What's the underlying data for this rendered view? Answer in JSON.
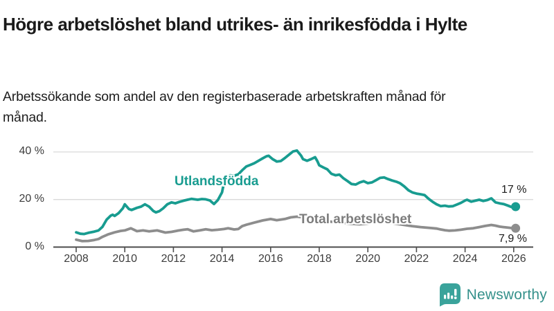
{
  "page": {
    "title": "Högre arbetslöshet bland utrikes- än inrikesfödda i Hylte",
    "subtitle": "Arbetssökande som andel av den registerbaserade arbetskraften månad för månad."
  },
  "branding": {
    "logo_text": "Newsworthy",
    "logo_icon": "bar-chart-speech-bubble-icon",
    "icon_color": "#3aa39b",
    "text_color": "#35918b"
  },
  "chart_data": {
    "type": "line",
    "title": "Högre arbetslöshet bland utrikes- än inrikesfödda i Hylte",
    "xlabel": "",
    "ylabel": "Arbetssökande som andel av den registerbaserade arbetskraften",
    "unit": "%",
    "ylim": [
      0,
      44
    ],
    "x_range": [
      2008.0,
      2026.1
    ],
    "grid": "horizontal-only",
    "legend_position": "inline-labels",
    "colors": {
      "grid": "#d9d9d9",
      "axis": "#4d4d4d",
      "tick_text": "#3c3c3c"
    },
    "y_ticks": [
      {
        "value": 0,
        "label": "0 %"
      },
      {
        "value": 20,
        "label": "20 %"
      },
      {
        "value": 40,
        "label": "40 %"
      }
    ],
    "x_ticks": [
      {
        "value": 2008,
        "label": "2008"
      },
      {
        "value": 2010,
        "label": "2010"
      },
      {
        "value": 2012,
        "label": "2012"
      },
      {
        "value": 2014,
        "label": "2014"
      },
      {
        "value": 2016,
        "label": "2016"
      },
      {
        "value": 2018,
        "label": "2018"
      },
      {
        "value": 2020,
        "label": "2020"
      },
      {
        "value": 2022,
        "label": "2022"
      },
      {
        "value": 2024,
        "label": "2024"
      },
      {
        "value": 2026,
        "label": "2026"
      }
    ],
    "series": [
      {
        "name": "Utlandsfödda",
        "color": "#189c90",
        "end_label": "17 %",
        "end_value": 17.0,
        "data": [
          [
            2008.0,
            6.2
          ],
          [
            2008.17,
            5.6
          ],
          [
            2008.33,
            5.5
          ],
          [
            2008.5,
            6.0
          ],
          [
            2008.75,
            6.5
          ],
          [
            2008.92,
            7.0
          ],
          [
            2009.08,
            8.5
          ],
          [
            2009.25,
            11.5
          ],
          [
            2009.42,
            13.2
          ],
          [
            2009.5,
            13.6
          ],
          [
            2009.58,
            13.1
          ],
          [
            2009.75,
            14.3
          ],
          [
            2009.92,
            16.3
          ],
          [
            2010.0,
            18.0
          ],
          [
            2010.17,
            16.0
          ],
          [
            2010.28,
            15.6
          ],
          [
            2010.5,
            16.5
          ],
          [
            2010.67,
            17.0
          ],
          [
            2010.83,
            18.0
          ],
          [
            2011.0,
            17.0
          ],
          [
            2011.17,
            15.2
          ],
          [
            2011.28,
            14.6
          ],
          [
            2011.42,
            15.1
          ],
          [
            2011.58,
            16.3
          ],
          [
            2011.75,
            18.0
          ],
          [
            2011.92,
            18.8
          ],
          [
            2012.08,
            18.4
          ],
          [
            2012.25,
            19.0
          ],
          [
            2012.42,
            19.5
          ],
          [
            2012.58,
            19.9
          ],
          [
            2012.75,
            20.3
          ],
          [
            2013.0,
            19.9
          ],
          [
            2013.17,
            20.2
          ],
          [
            2013.33,
            20.1
          ],
          [
            2013.5,
            19.6
          ],
          [
            2013.67,
            18.1
          ],
          [
            2013.83,
            19.8
          ],
          [
            2014.0,
            23.0
          ],
          [
            2014.08,
            27.0
          ],
          [
            2014.17,
            29.3
          ],
          [
            2014.33,
            30.2
          ],
          [
            2014.5,
            30.0
          ],
          [
            2014.67,
            30.6
          ],
          [
            2014.83,
            32.3
          ],
          [
            2015.0,
            33.9
          ],
          [
            2015.17,
            34.6
          ],
          [
            2015.33,
            35.3
          ],
          [
            2015.5,
            36.3
          ],
          [
            2015.67,
            37.3
          ],
          [
            2015.83,
            38.2
          ],
          [
            2015.92,
            38.4
          ],
          [
            2016.08,
            37.0
          ],
          [
            2016.25,
            36.0
          ],
          [
            2016.42,
            36.2
          ],
          [
            2016.58,
            37.4
          ],
          [
            2016.75,
            38.8
          ],
          [
            2016.92,
            40.2
          ],
          [
            2017.08,
            40.6
          ],
          [
            2017.25,
            38.5
          ],
          [
            2017.33,
            37.0
          ],
          [
            2017.5,
            36.3
          ],
          [
            2017.67,
            37.0
          ],
          [
            2017.83,
            37.8
          ],
          [
            2017.92,
            36.2
          ],
          [
            2018.0,
            34.4
          ],
          [
            2018.17,
            33.5
          ],
          [
            2018.33,
            32.7
          ],
          [
            2018.5,
            30.8
          ],
          [
            2018.67,
            30.2
          ],
          [
            2018.83,
            30.5
          ],
          [
            2019.0,
            28.9
          ],
          [
            2019.17,
            27.7
          ],
          [
            2019.33,
            26.5
          ],
          [
            2019.5,
            26.3
          ],
          [
            2019.67,
            27.2
          ],
          [
            2019.83,
            27.7
          ],
          [
            2020.0,
            26.9
          ],
          [
            2020.17,
            27.2
          ],
          [
            2020.33,
            28.1
          ],
          [
            2020.5,
            29.1
          ],
          [
            2020.67,
            29.3
          ],
          [
            2020.83,
            28.6
          ],
          [
            2021.0,
            28.0
          ],
          [
            2021.17,
            27.5
          ],
          [
            2021.33,
            26.8
          ],
          [
            2021.5,
            25.5
          ],
          [
            2021.67,
            23.9
          ],
          [
            2021.83,
            23.0
          ],
          [
            2022.0,
            22.5
          ],
          [
            2022.17,
            22.2
          ],
          [
            2022.33,
            21.9
          ],
          [
            2022.5,
            20.3
          ],
          [
            2022.67,
            19.0
          ],
          [
            2022.83,
            18.0
          ],
          [
            2023.0,
            17.2
          ],
          [
            2023.17,
            17.4
          ],
          [
            2023.33,
            17.1
          ],
          [
            2023.5,
            17.2
          ],
          [
            2023.67,
            17.9
          ],
          [
            2023.83,
            18.6
          ],
          [
            2024.0,
            19.6
          ],
          [
            2024.08,
            19.9
          ],
          [
            2024.25,
            19.1
          ],
          [
            2024.42,
            19.5
          ],
          [
            2024.58,
            19.9
          ],
          [
            2024.75,
            19.4
          ],
          [
            2024.92,
            19.8
          ],
          [
            2025.08,
            20.5
          ],
          [
            2025.25,
            18.8
          ],
          [
            2025.42,
            18.4
          ],
          [
            2025.58,
            18.1
          ],
          [
            2025.75,
            17.5
          ],
          [
            2025.92,
            16.8
          ],
          [
            2026.08,
            17.0
          ]
        ]
      },
      {
        "name": "Total arbetslöshet",
        "color": "#8d8d8d",
        "end_label": "7,9 %",
        "end_value": 7.9,
        "data": [
          [
            2008.0,
            3.1
          ],
          [
            2008.25,
            2.5
          ],
          [
            2008.5,
            2.6
          ],
          [
            2008.75,
            3.0
          ],
          [
            2008.92,
            3.4
          ],
          [
            2009.08,
            4.3
          ],
          [
            2009.33,
            5.4
          ],
          [
            2009.58,
            6.2
          ],
          [
            2009.83,
            6.8
          ],
          [
            2010.0,
            7.0
          ],
          [
            2010.25,
            7.9
          ],
          [
            2010.5,
            6.7
          ],
          [
            2010.75,
            7.0
          ],
          [
            2011.0,
            6.6
          ],
          [
            2011.33,
            7.0
          ],
          [
            2011.67,
            6.1
          ],
          [
            2011.92,
            6.4
          ],
          [
            2012.17,
            6.9
          ],
          [
            2012.42,
            7.3
          ],
          [
            2012.58,
            7.5
          ],
          [
            2012.83,
            6.6
          ],
          [
            2013.08,
            7.0
          ],
          [
            2013.33,
            7.5
          ],
          [
            2013.58,
            7.1
          ],
          [
            2013.83,
            7.3
          ],
          [
            2014.08,
            7.6
          ],
          [
            2014.25,
            7.9
          ],
          [
            2014.5,
            7.4
          ],
          [
            2014.67,
            7.6
          ],
          [
            2014.83,
            8.8
          ],
          [
            2015.0,
            9.4
          ],
          [
            2015.33,
            10.3
          ],
          [
            2015.67,
            11.2
          ],
          [
            2016.0,
            11.8
          ],
          [
            2016.25,
            11.3
          ],
          [
            2016.58,
            11.8
          ],
          [
            2016.83,
            12.5
          ],
          [
            2017.08,
            12.8
          ],
          [
            2017.33,
            12.5
          ],
          [
            2017.67,
            12.1
          ],
          [
            2018.0,
            11.5
          ],
          [
            2018.33,
            10.9
          ],
          [
            2018.67,
            10.4
          ],
          [
            2019.0,
            10.1
          ],
          [
            2019.33,
            9.8
          ],
          [
            2019.67,
            9.6
          ],
          [
            2020.0,
            9.9
          ],
          [
            2020.33,
            10.5
          ],
          [
            2020.58,
            10.7
          ],
          [
            2020.83,
            10.3
          ],
          [
            2021.17,
            9.8
          ],
          [
            2021.5,
            9.3
          ],
          [
            2021.83,
            8.8
          ],
          [
            2022.17,
            8.4
          ],
          [
            2022.5,
            8.1
          ],
          [
            2022.83,
            7.8
          ],
          [
            2023.0,
            7.4
          ],
          [
            2023.17,
            7.1
          ],
          [
            2023.33,
            6.9
          ],
          [
            2023.58,
            7.0
          ],
          [
            2023.83,
            7.3
          ],
          [
            2024.08,
            7.7
          ],
          [
            2024.33,
            7.9
          ],
          [
            2024.58,
            8.4
          ],
          [
            2024.83,
            8.9
          ],
          [
            2025.08,
            9.3
          ],
          [
            2025.25,
            9.0
          ],
          [
            2025.42,
            8.6
          ],
          [
            2025.58,
            8.4
          ],
          [
            2025.75,
            8.2
          ],
          [
            2025.92,
            8.0
          ],
          [
            2026.08,
            7.9
          ]
        ]
      }
    ]
  }
}
